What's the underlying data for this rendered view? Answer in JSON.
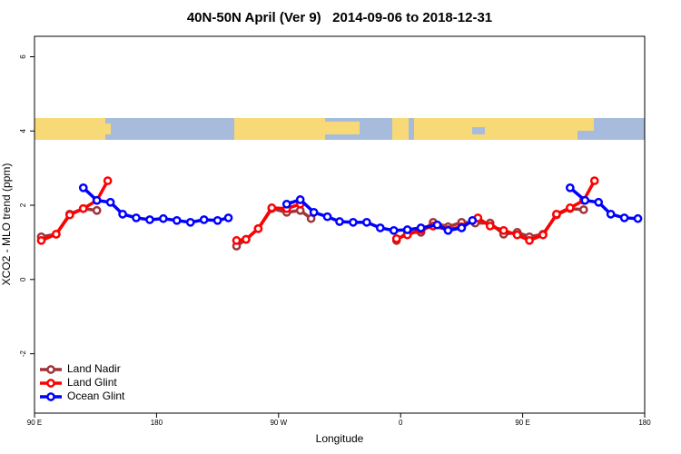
{
  "chart_data": {
    "type": "line",
    "title": "40N-50N April (Ver 9)   2014-09-06 to 2018-12-31",
    "x_label": "Longitude",
    "y_label": "XCO2 - MLO trend (ppm)",
    "xlim": [
      90,
      540
    ],
    "ylim": [
      -3.6,
      6.55
    ],
    "xticks": [
      {
        "value": 90,
        "label": "90 E"
      },
      180,
      {
        "value": 270,
        "label": "90 W"
      },
      {
        "value": 360,
        "label": "0"
      },
      {
        "value": 450,
        "label": "90 E"
      },
      {
        "value": 540,
        "label": "180"
      }
    ],
    "yticks": [
      -2,
      0,
      2,
      4,
      6
    ],
    "legend": "bottom-left",
    "series": [
      {
        "name": "Land Nadir",
        "color": "#a0343a",
        "x": [
          95,
          106,
          116,
          126,
          136,
          null,
          239,
          246,
          255,
          265,
          276,
          286,
          294,
          null,
          357,
          365,
          375,
          384,
          395,
          405,
          415,
          426,
          436,
          446,
          455,
          465,
          475,
          485,
          495
        ],
        "values": [
          1.15,
          1.22,
          1.76,
          1.91,
          1.86,
          null,
          0.9,
          1.08,
          1.37,
          1.91,
          1.81,
          1.86,
          1.64,
          null,
          1.05,
          1.27,
          1.27,
          1.54,
          1.42,
          1.54,
          1.52,
          1.52,
          1.22,
          1.27,
          1.15,
          1.22,
          1.74,
          1.91,
          1.88
        ]
      },
      {
        "name": "Land Glint",
        "color": "#ff0000",
        "x": [
          95,
          106,
          116,
          126,
          136,
          144,
          null,
          239,
          246,
          255,
          265,
          276,
          286,
          null,
          357,
          365,
          375,
          384,
          395,
          405,
          417,
          426,
          436,
          446,
          455,
          465,
          475,
          485,
          495,
          503
        ],
        "values": [
          1.05,
          1.22,
          1.74,
          1.91,
          2.13,
          2.66,
          null,
          1.05,
          1.08,
          1.37,
          1.93,
          1.91,
          2.03,
          null,
          1.1,
          1.2,
          1.34,
          1.44,
          1.34,
          1.42,
          1.66,
          1.44,
          1.32,
          1.2,
          1.05,
          1.2,
          1.76,
          1.93,
          2.13,
          2.66
        ]
      },
      {
        "name": "Ocean Glint",
        "color": "#0000ff",
        "x": [
          126,
          136,
          146,
          155,
          165,
          175,
          185,
          195,
          205,
          215,
          225,
          233,
          null,
          276,
          286,
          296,
          306,
          315,
          325,
          335,
          345,
          355,
          365,
          375,
          387,
          395,
          405,
          413,
          null,
          485,
          496,
          506,
          515,
          525,
          535
        ],
        "values": [
          2.47,
          2.13,
          2.08,
          1.76,
          1.66,
          1.61,
          1.64,
          1.59,
          1.54,
          1.61,
          1.59,
          1.66,
          null,
          2.03,
          2.15,
          1.81,
          1.69,
          1.56,
          1.54,
          1.54,
          1.39,
          1.32,
          1.34,
          1.39,
          1.47,
          1.32,
          1.39,
          1.59,
          null,
          2.47,
          2.13,
          2.08,
          1.76,
          1.66,
          1.64
        ]
      }
    ]
  }
}
